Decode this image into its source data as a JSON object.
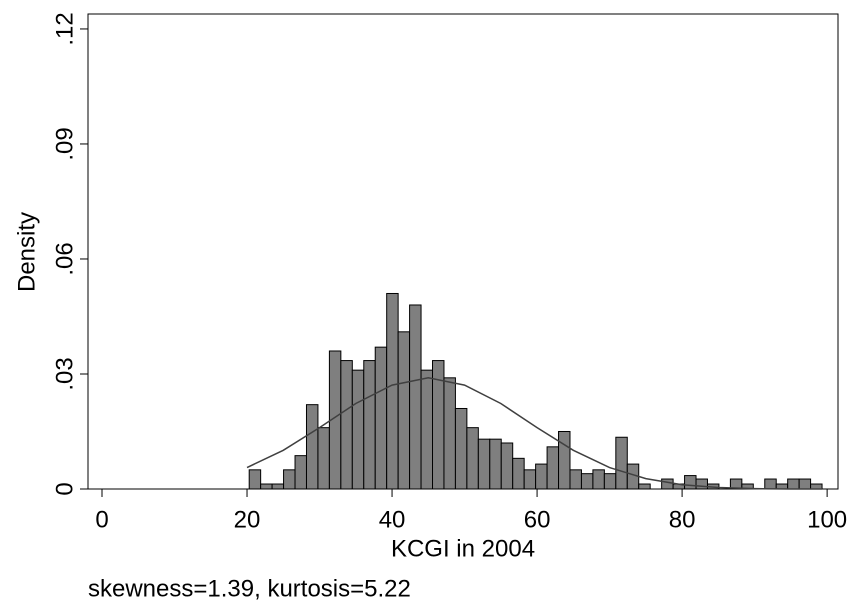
{
  "chart_data": {
    "type": "histogram",
    "x_label": "KCGI in 2004",
    "y_label": "Density",
    "note": "skewness=1.39, kurtosis=5.22",
    "bins": [
      20.3,
      21.88,
      23.46,
      25.04,
      26.62,
      28.2,
      29.78,
      31.36,
      32.94,
      34.52,
      36.1,
      37.68,
      39.26,
      40.84,
      42.42,
      44,
      45.58,
      47.16,
      48.74,
      50.32,
      51.9,
      53.48,
      55.06,
      56.64,
      58.22,
      59.8,
      61.38,
      62.96,
      64.54,
      66.12,
      67.7,
      69.28,
      70.86,
      72.44,
      74.02,
      75.6,
      77.18,
      78.76,
      80.34,
      81.92,
      83.5,
      85.08,
      86.66,
      88.24,
      89.82,
      91.4,
      92.98,
      94.56,
      96.14,
      97.72,
      99.3
    ],
    "values": [
      0.005,
      0.0013,
      0.0013,
      0.005,
      0.0087,
      0.022,
      0.016,
      0.036,
      0.0335,
      0.031,
      0.0335,
      0.037,
      0.051,
      0.041,
      0.048,
      0.031,
      0.0335,
      0.029,
      0.021,
      0.016,
      0.013,
      0.013,
      0.012,
      0.008,
      0.005,
      0.0065,
      0.011,
      0.015,
      0.005,
      0.004,
      0.005,
      0.004,
      0.0135,
      0.0065,
      0.0013,
      0,
      0.0026,
      0.0013,
      0.0035,
      0.0026,
      0.0013,
      0,
      0.0026,
      0.0013,
      0,
      0.0026,
      0.0013,
      0.0026,
      0.0026,
      0.0013
    ],
    "color": "#7f7f7f",
    "curve": {
      "x": [
        20,
        25,
        30,
        35,
        40,
        45,
        50,
        55,
        60,
        65,
        70,
        75,
        80,
        85,
        90,
        95,
        99.3
      ],
      "values": [
        0.0056,
        0.0101,
        0.016,
        0.0223,
        0.0271,
        0.029,
        0.0271,
        0.0223,
        0.016,
        0.0101,
        0.0056,
        0.0027,
        0.0011,
        0.0004,
        0.0001,
        0,
        0
      ],
      "color": "#404040"
    },
    "xlim": [
      -1.93,
      101.5
    ],
    "ylim": [
      0,
      0.1239
    ],
    "xticks": [
      0,
      20,
      40,
      60,
      80,
      100
    ],
    "yticks": [
      0,
      {
        "value": 0.03,
        "label": ".03"
      },
      {
        "value": 0.06,
        "label": ".06"
      },
      {
        "value": 0.09,
        "label": ".09"
      },
      {
        "value": 0.12,
        "label": ".12"
      }
    ]
  }
}
